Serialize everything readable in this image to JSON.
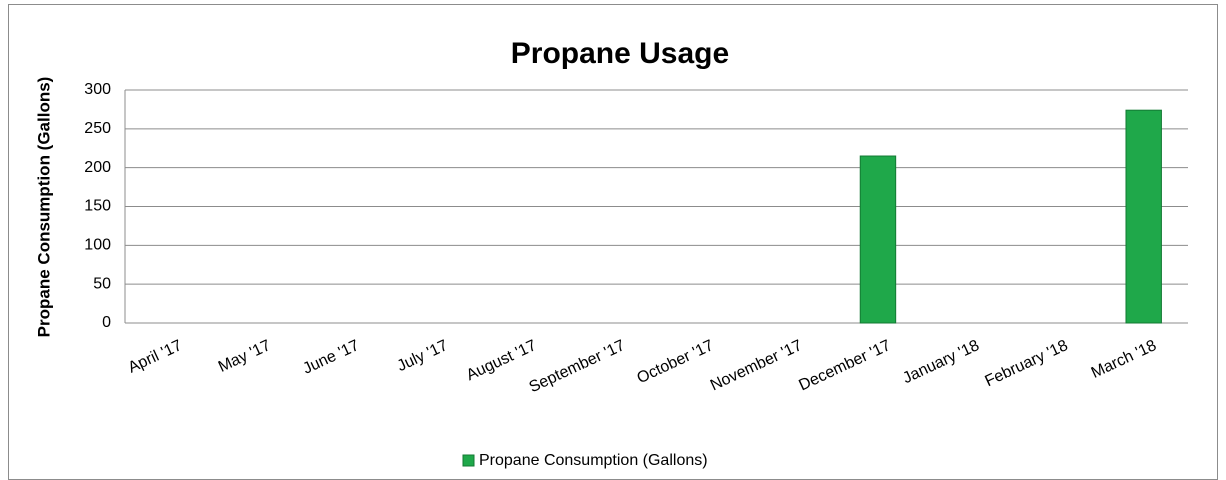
{
  "chart_data": {
    "type": "bar",
    "title": "Propane Usage",
    "y_label": "Propane Consumption (Gallons)",
    "categories": [
      "April '17",
      "May '17",
      "June '17",
      "July '17",
      "August '17",
      "September '17",
      "October '17",
      "November '17",
      "December '17",
      "January '18",
      "February '18",
      "March '18"
    ],
    "series": [
      {
        "name": "Propane Consumption (Gallons)",
        "color": "#1fa84a",
        "values": [
          0,
          0,
          0,
          0,
          0,
          0,
          0,
          0,
          215,
          0,
          0,
          274
        ]
      }
    ],
    "ylim": [
      0,
      300
    ],
    "yticks": [
      0,
      50,
      100,
      150,
      200,
      250,
      300
    ],
    "grid": true,
    "legend": "bottom"
  }
}
